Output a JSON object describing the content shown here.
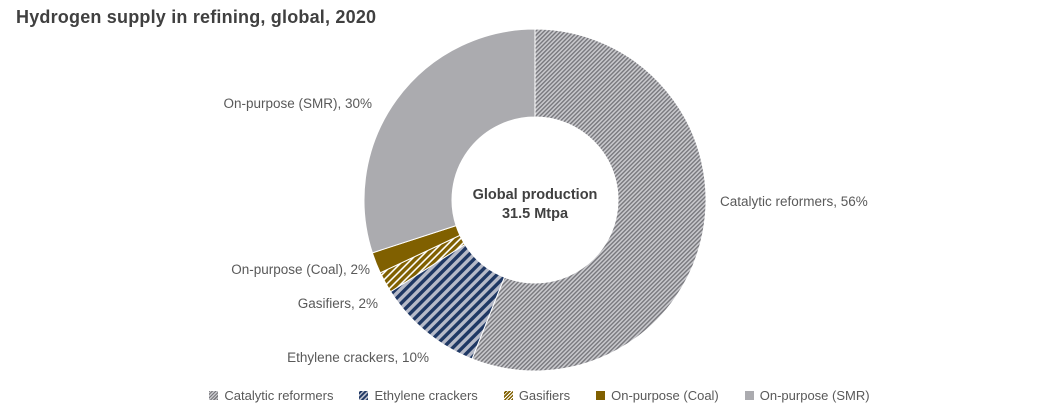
{
  "title": "Hydrogen supply in refining, global, 2020",
  "center_label": {
    "line1": "Global production",
    "line2": "31.5 Mtpa"
  },
  "colors": {
    "title_text": "#404040",
    "label_text": "#595959",
    "gold": "#806000",
    "navy": "#1F3864",
    "smr_gray": "#ABABAF",
    "hatch_gray": "#77777C"
  },
  "chart_data": {
    "type": "pie",
    "subtype": "donut",
    "title": "Hydrogen supply in refining, global, 2020",
    "unit": "%",
    "direction": "clockwise",
    "start_angle_deg": 0,
    "inner_radius_ratio": 0.485,
    "legend_position": "bottom",
    "center_text": "Global production 31.5 Mtpa",
    "segments": [
      {
        "label": "Catalytic reformers",
        "value": 56,
        "fill": {
          "type": "stripes",
          "fg": "#77777C",
          "bg": "#C9C9CD",
          "fg_width": 1.4,
          "period": 3
        }
      },
      {
        "label": "Ethylene crackers",
        "value": 10,
        "fill": {
          "type": "stripes",
          "fg": "#1F3864",
          "bg": "#B6BAC8",
          "fg_width": 3.4,
          "period": 6.8
        }
      },
      {
        "label": "Gasifiers",
        "value": 2,
        "fill": {
          "type": "stripes",
          "fg": "#806000",
          "bg": "#FFFFFF",
          "fg_width": 3.4,
          "period": 5
        }
      },
      {
        "label": "On-purpose (Coal)",
        "value": 2,
        "fill": {
          "type": "solid",
          "fg": "#806000"
        }
      },
      {
        "label": "On-purpose (SMR)",
        "value": 30,
        "fill": {
          "type": "solid",
          "fg": "#ABABAF"
        }
      }
    ],
    "point_labels": [
      "Catalytic reformers, 56%",
      "Ethylene crackers, 10%",
      "Gasifiers, 2%",
      "On-purpose (Coal), 2%",
      "On-purpose (SMR), 30%"
    ]
  }
}
